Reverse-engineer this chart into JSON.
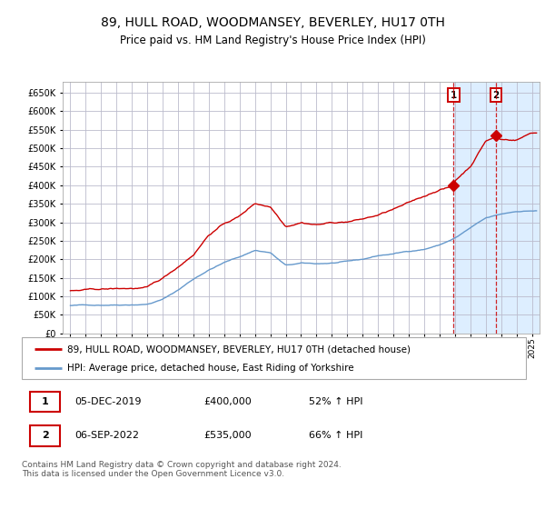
{
  "title": "89, HULL ROAD, WOODMANSEY, BEVERLEY, HU17 0TH",
  "subtitle": "Price paid vs. HM Land Registry's House Price Index (HPI)",
  "legend_line1": "89, HULL ROAD, WOODMANSEY, BEVERLEY, HU17 0TH (detached house)",
  "legend_line2": "HPI: Average price, detached house, East Riding of Yorkshire",
  "sale1_label": "1",
  "sale1_date": "05-DEC-2019",
  "sale1_price": "£400,000",
  "sale1_hpi": "52% ↑ HPI",
  "sale1_year": 2019.92,
  "sale1_value": 400000,
  "sale2_label": "2",
  "sale2_date": "06-SEP-2022",
  "sale2_price": "£535,000",
  "sale2_hpi": "66% ↑ HPI",
  "sale2_year": 2022.67,
  "sale2_value": 535000,
  "footer": "Contains HM Land Registry data © Crown copyright and database right 2024.\nThis data is licensed under the Open Government Licence v3.0.",
  "red_color": "#cc0000",
  "blue_color": "#6699cc",
  "highlight_bg": "#ddeeff",
  "grid_color": "#bbbbcc",
  "ylim": [
    0,
    680000
  ],
  "xlim_start": 1994.5,
  "xlim_end": 2025.5,
  "hpi_key_years": [
    1995,
    1997,
    2000,
    2001,
    2002,
    2003,
    2004,
    2005,
    2006,
    2007,
    2008,
    2009,
    2010,
    2011,
    2012,
    2013,
    2014,
    2015,
    2016,
    2017,
    2018,
    2019,
    2020,
    2021,
    2022,
    2023,
    2024,
    2025
  ],
  "hpi_key_prices": [
    75000,
    77000,
    82000,
    95000,
    120000,
    150000,
    175000,
    195000,
    210000,
    228000,
    222000,
    187000,
    192000,
    190000,
    192000,
    195000,
    200000,
    210000,
    215000,
    222000,
    228000,
    240000,
    258000,
    285000,
    310000,
    320000,
    328000,
    330000
  ],
  "red_key_years": [
    1995,
    1997,
    2000,
    2001,
    2002,
    2003,
    2004,
    2005,
    2006,
    2007,
    2008,
    2009,
    2010,
    2011,
    2012,
    2013,
    2014,
    2015,
    2016,
    2017,
    2018,
    2019,
    2019.92,
    2020,
    2021,
    2022,
    2022.67,
    2023,
    2024,
    2025
  ],
  "red_key_prices": [
    115000,
    117000,
    120000,
    143000,
    175000,
    210000,
    265000,
    295000,
    315000,
    350000,
    342000,
    292000,
    305000,
    300000,
    305000,
    308000,
    315000,
    325000,
    340000,
    355000,
    372000,
    392000,
    400000,
    415000,
    455000,
    525000,
    535000,
    528000,
    528000,
    548000
  ]
}
